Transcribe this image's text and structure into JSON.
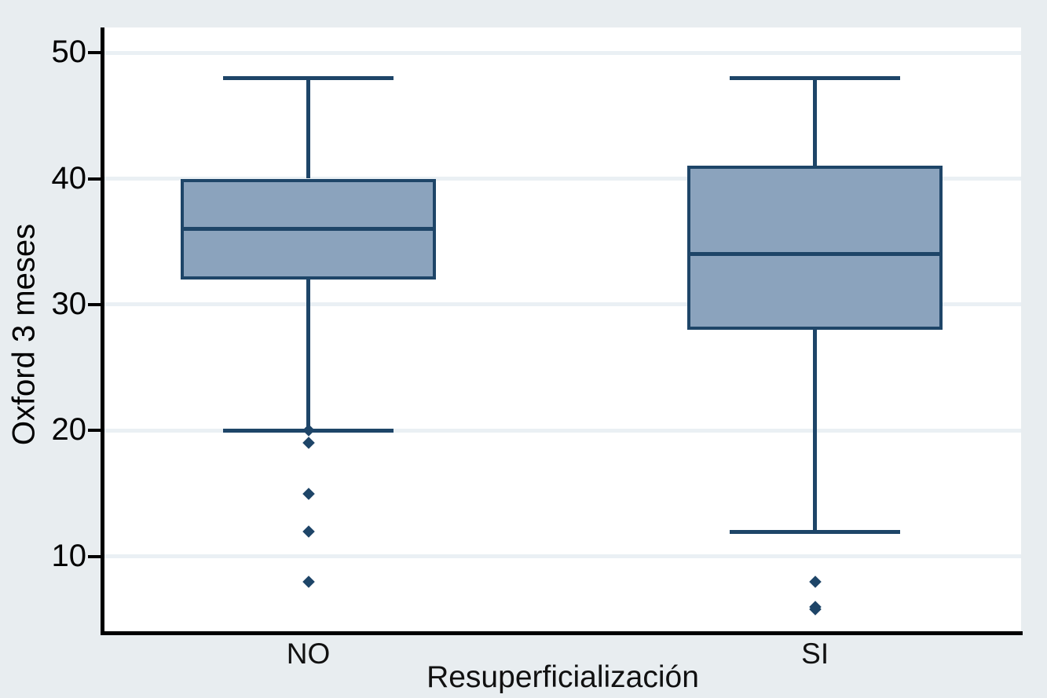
{
  "figure": {
    "outer_bg": "#e8edf0"
  },
  "chart_data": {
    "type": "box",
    "title": "",
    "xlabel": "Resuperficialización",
    "ylabel": "Oxford 3 meses",
    "ylim": [
      4,
      52
    ],
    "yticks": [
      50,
      40,
      30,
      20,
      10
    ],
    "grid": "horizontal",
    "legend": "none",
    "categories": [
      "NO",
      "SI"
    ],
    "series": [
      {
        "category": "NO",
        "whisker_low": 20,
        "q1": 32,
        "median": 36,
        "q3": 40,
        "whisker_high": 48,
        "outliers": [
          20,
          19,
          15,
          12,
          8
        ]
      },
      {
        "category": "SI",
        "whisker_low": 12,
        "q1": 28,
        "median": 34,
        "q3": 41,
        "whisker_high": 48,
        "outliers": [
          8,
          6,
          5.8
        ]
      }
    ],
    "colors": {
      "box_fill": "#8ba3bd",
      "box_border": "#1e4568",
      "whisker": "#1e4568",
      "outlier": "#1e4568",
      "axis": "#000000",
      "tick_label": "#000000",
      "gridline": "#eaf0f4",
      "plot_bg": "#ffffff"
    }
  }
}
